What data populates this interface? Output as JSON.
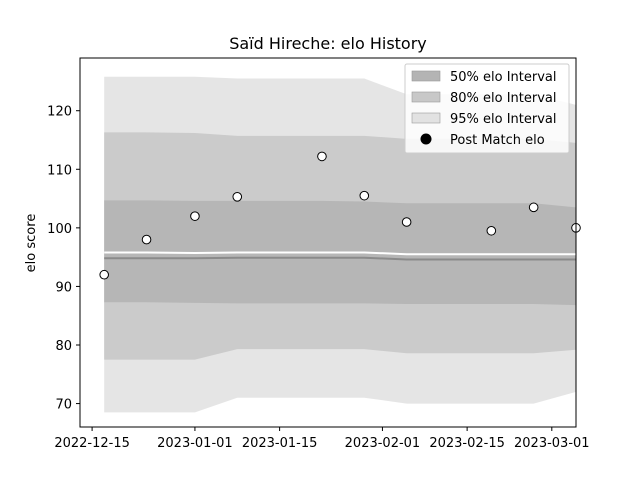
{
  "chart_data": {
    "type": "line",
    "title": "Saïd Hireche: elo History",
    "xlabel": "",
    "ylabel": "elo score",
    "x_ticks": [
      "2022-12-15",
      "2023-01-01",
      "2023-01-15",
      "2023-02-01",
      "2023-02-15",
      "2023-03-01"
    ],
    "y_ticks": [
      70,
      80,
      90,
      100,
      110,
      120
    ],
    "xlim": [
      "2022-12-13",
      "2023-03-05"
    ],
    "ylim": [
      66,
      129
    ],
    "grid": false,
    "legend_position": "top-right",
    "legend": [
      {
        "label": "50% elo Interval",
        "color": "#b4b4b4",
        "kind": "patch"
      },
      {
        "label": "80% elo Interval",
        "color": "#c8c8c8",
        "kind": "patch"
      },
      {
        "label": "95% elo Interval",
        "color": "#e2e2e2",
        "kind": "patch"
      },
      {
        "label": "Post Match elo",
        "color": "#000000",
        "kind": "marker"
      }
    ],
    "band_x": [
      "2022-12-17",
      "2022-12-24",
      "2023-01-01",
      "2023-01-08",
      "2023-01-22",
      "2023-01-29",
      "2023-02-05",
      "2023-02-19",
      "2023-02-26",
      "2023-03-05"
    ],
    "bands": {
      "p95": {
        "lower": [
          68.5,
          68.5,
          68.5,
          71,
          71,
          71,
          70,
          70,
          70,
          72
        ],
        "upper": [
          125.8,
          125.8,
          125.8,
          125.5,
          125.5,
          125.5,
          122.8,
          122.8,
          122.8,
          121
        ]
      },
      "p80": {
        "lower": [
          77.5,
          77.5,
          77.5,
          79.3,
          79.3,
          79.3,
          78.6,
          78.6,
          78.6,
          79.2
        ],
        "upper": [
          116.3,
          116.3,
          116.2,
          115.7,
          115.7,
          115.7,
          115.2,
          115.2,
          115.2,
          114.5
        ]
      },
      "p50": {
        "lower": [
          87.3,
          87.3,
          87.2,
          87.1,
          87.1,
          87.1,
          87.0,
          87.0,
          87.0,
          86.8
        ],
        "upper": [
          104.7,
          104.7,
          104.6,
          104.6,
          104.6,
          104.5,
          104.2,
          104.2,
          104.2,
          103.5
        ]
      }
    },
    "mean_line": [
      94.8,
      94.8,
      94.8,
      94.9,
      94.9,
      94.9,
      94.6,
      94.6,
      94.6,
      94.6
    ],
    "upper_line": [
      95.8,
      95.8,
      95.7,
      95.8,
      95.8,
      95.8,
      95.5,
      95.5,
      95.5,
      95.5
    ],
    "series": [
      {
        "name": "Post Match elo",
        "x": [
          "2022-12-17",
          "2022-12-24",
          "2023-01-01",
          "2023-01-08",
          "2023-01-22",
          "2023-01-29",
          "2023-02-05",
          "2023-02-19",
          "2023-02-26",
          "2023-03-05"
        ],
        "values": [
          92,
          98,
          102,
          105.3,
          112.2,
          105.5,
          101,
          99.5,
          103.5,
          100
        ]
      }
    ]
  }
}
